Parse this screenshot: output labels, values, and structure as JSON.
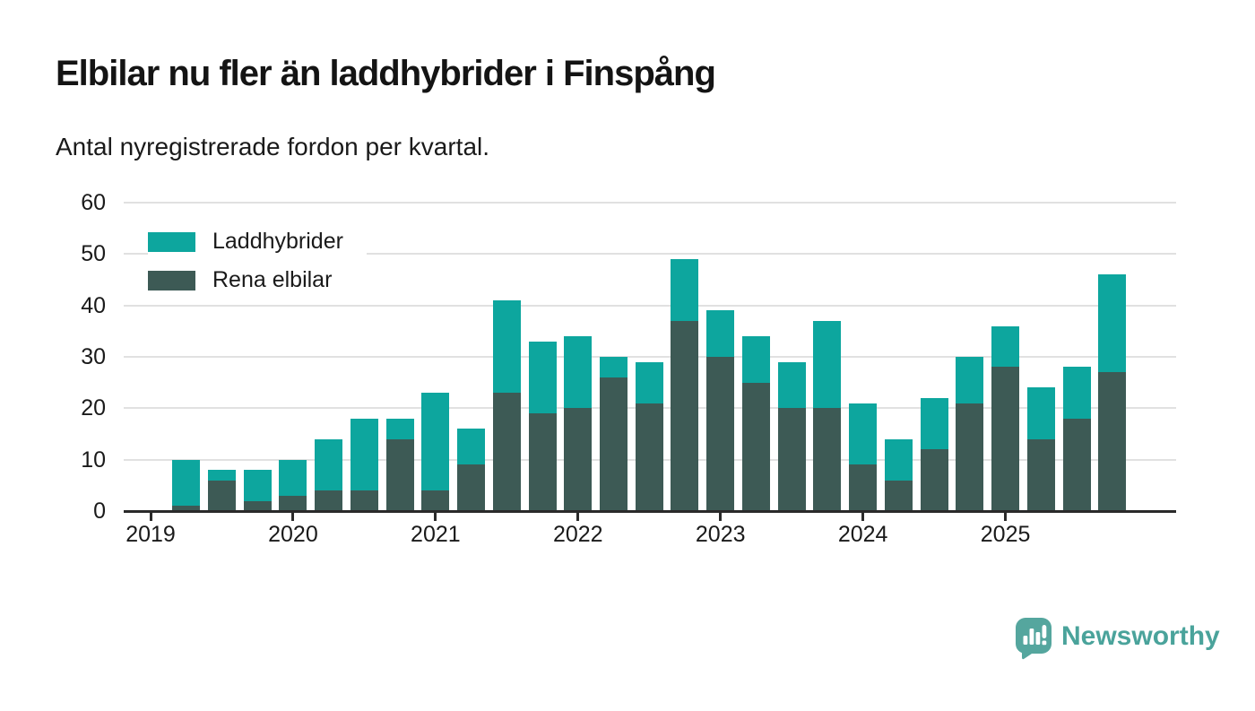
{
  "header": {
    "title": "Elbilar nu fler än laddhybrider i Finspång",
    "subtitle": "Antal nyregistrerade fordon per kvartal."
  },
  "legend": {
    "items": [
      {
        "label": "Laddhybrider",
        "color": "#0da69e"
      },
      {
        "label": "Rena elbilar",
        "color": "#3d5a55"
      }
    ]
  },
  "branding": {
    "name": "Newsworthy",
    "color": "#4aa39b",
    "icon": "speech-bubble-bar-chart-exclamation"
  },
  "chart_data": {
    "type": "bar",
    "stacked": true,
    "title": "Elbilar nu fler än laddhybrider i Finspång",
    "subtitle": "Antal nyregistrerade fordon per kvartal.",
    "xlabel": "",
    "ylabel": "",
    "ylim": [
      0,
      60
    ],
    "yticks": [
      0,
      10,
      20,
      30,
      40,
      50,
      60
    ],
    "grid": "horizontal",
    "legend_position": "top-left",
    "categories": [
      "2019 Q1",
      "2019 Q2",
      "2019 Q3",
      "2019 Q4",
      "2020 Q1",
      "2020 Q2",
      "2020 Q3",
      "2020 Q4",
      "2021 Q1",
      "2021 Q2",
      "2021 Q3",
      "2021 Q4",
      "2022 Q1",
      "2022 Q2",
      "2022 Q3",
      "2022 Q4",
      "2023 Q1",
      "2023 Q2",
      "2023 Q3",
      "2023 Q4",
      "2024 Q1",
      "2024 Q2",
      "2024 Q3",
      "2024 Q4",
      "2025 Q1",
      "2025 Q2",
      "2025 Q3",
      "2025 Q4"
    ],
    "series": [
      {
        "name": "Rena elbilar",
        "color": "#3d5a55",
        "values": [
          0,
          1,
          6,
          2,
          3,
          4,
          4,
          14,
          4,
          9,
          23,
          19,
          20,
          26,
          21,
          37,
          30,
          25,
          20,
          20,
          9,
          6,
          12,
          21,
          28,
          14,
          18,
          27
        ]
      },
      {
        "name": "Laddhybrider",
        "color": "#0da69e",
        "values": [
          0,
          9,
          2,
          6,
          7,
          10,
          14,
          4,
          19,
          7,
          18,
          14,
          14,
          4,
          8,
          12,
          9,
          9,
          9,
          17,
          12,
          8,
          10,
          9,
          8,
          10,
          10,
          19
        ]
      }
    ],
    "totals": [
      0,
      10,
      8,
      8,
      10,
      14,
      18,
      18,
      23,
      16,
      41,
      33,
      34,
      30,
      29,
      49,
      39,
      34,
      29,
      37,
      21,
      14,
      22,
      30,
      36,
      24,
      28,
      46
    ],
    "xtick_labels": [
      "2019",
      "2020",
      "2021",
      "2022",
      "2023",
      "2024",
      "2025"
    ]
  }
}
